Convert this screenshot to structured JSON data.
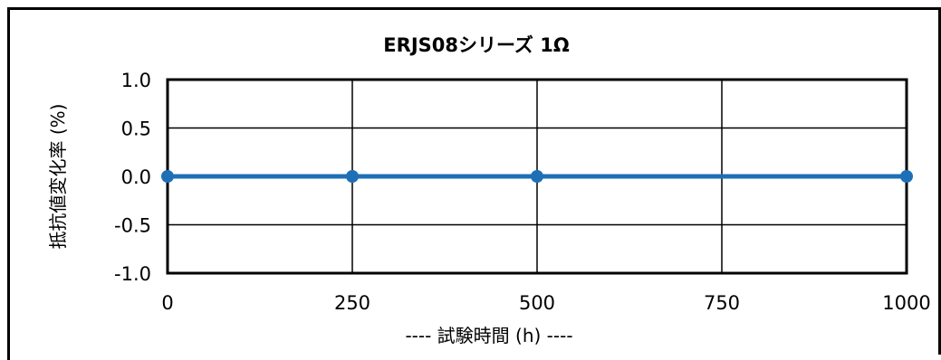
{
  "chart_data": {
    "type": "line",
    "title": "ERJS08シリーズ 1Ω",
    "xlabel": "---- 試験時間 (h) ----",
    "ylabel": "抵抗値変化率 (%)",
    "xlim": [
      0,
      1000
    ],
    "ylim": [
      -1.0,
      1.0
    ],
    "x_ticks": [
      0,
      250,
      500,
      750,
      1000
    ],
    "y_ticks": [
      1.0,
      0.5,
      0.0,
      -0.5,
      -1.0
    ],
    "x_tick_labels": [
      "0",
      "250",
      "500",
      "750",
      "1000"
    ],
    "y_tick_labels": [
      "1.0",
      "0.5",
      "0.0",
      "-0.5",
      "-1.0"
    ],
    "grid": true,
    "legend": "none",
    "series": [
      {
        "x": [
          0,
          250,
          500,
          1000
        ],
        "values": [
          0.0,
          0.0,
          0.0,
          0.0
        ],
        "color": "#1f6fb7"
      }
    ]
  }
}
